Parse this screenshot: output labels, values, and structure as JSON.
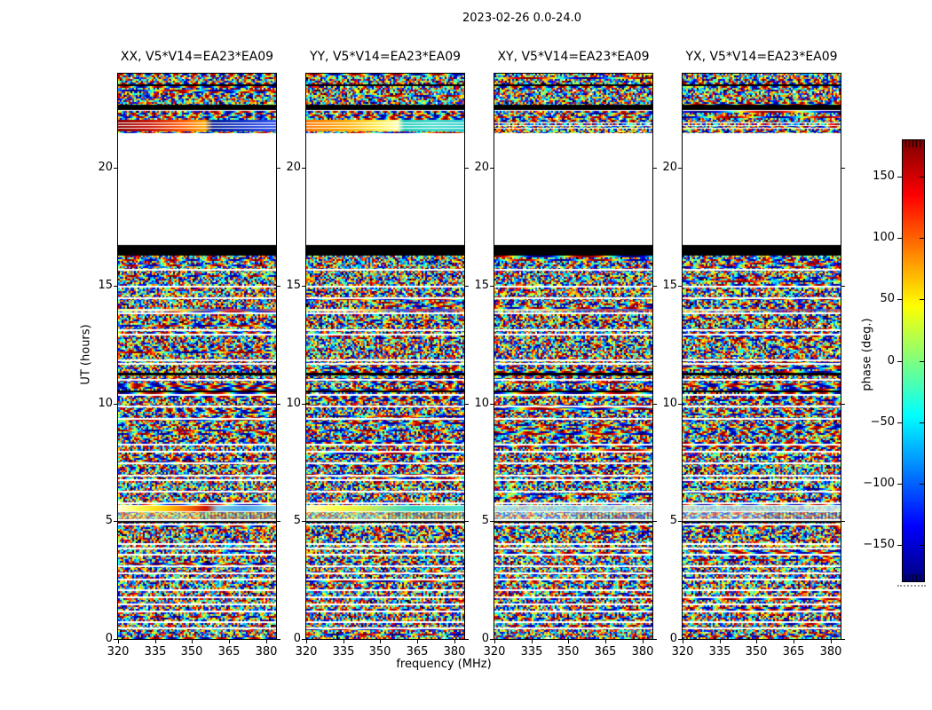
{
  "figure": {
    "title": "2023-02-26 0.0-24.0"
  },
  "axes": {
    "xlabel": "frequency (MHz)",
    "ylabel": "UT (hours)",
    "xtick_labels": [
      "320",
      "335",
      "350",
      "365",
      "380"
    ],
    "ytick_labels": [
      "0",
      "5",
      "10",
      "15",
      "20"
    ]
  },
  "panels": [
    {
      "label": "XX, V5*V14=EA23*EA09"
    },
    {
      "label": "YY, V5*V14=EA23*EA09"
    },
    {
      "label": "XY, V5*V14=EA23*EA09"
    },
    {
      "label": "YX, V5*V14=EA23*EA09"
    }
  ],
  "colorbar": {
    "label": "phase (deg.)",
    "tick_labels": [
      "150",
      "100",
      "50",
      "0",
      "−50",
      "−100",
      "−150"
    ]
  },
  "chart_data": {
    "type": "heatmap",
    "title": "2023-02-26 0.0-24.0",
    "xlabel": "frequency (MHz)",
    "ylabel": "UT (hours)",
    "xlim": [
      320,
      384
    ],
    "ylim": [
      0,
      24
    ],
    "xticks": [
      320,
      335,
      350,
      365,
      380
    ],
    "yticks": [
      0,
      5,
      10,
      15,
      20
    ],
    "value_quantity": "interferometer visibility phase, mostly random noise on baseline V5*V14=EA23*EA09",
    "colormap": "jet",
    "colorbar_range": [
      -180,
      180
    ],
    "colorbar_ticks": [
      150,
      100,
      50,
      0,
      -50,
      -100,
      -150
    ],
    "panels": [
      "XX, V5*V14=EA23*EA09",
      "YY, V5*V14=EA23*EA09",
      "XY, V5*V14=EA23*EA09",
      "YX, V5*V14=EA23*EA09"
    ],
    "no_data_hours": [
      [
        16.73,
        21.45
      ]
    ],
    "black_flag_hours": [
      [
        16.28,
        16.73
      ],
      [
        22.47,
        22.7
      ],
      [
        23.48,
        23.56
      ],
      [
        11.18,
        11.3
      ],
      [
        10.43,
        10.52
      ],
      [
        4.93,
        5.02
      ]
    ],
    "white_flag_hour_centers": [
      0.5,
      0.75,
      1.2,
      1.5,
      1.8,
      2.1,
      2.6,
      2.8,
      3.1,
      3.6,
      3.9,
      4.1,
      4.9,
      5.1,
      5.8,
      6.3,
      6.8,
      7.0,
      7.5,
      8.0,
      8.3,
      9.4,
      9.9,
      10.4,
      11.0,
      11.7,
      11.9,
      13.0,
      13.2,
      13.9,
      14.5,
      15.0,
      15.7,
      21.8,
      22.0,
      22.4
    ],
    "coherent_events": [
      {
        "hours": [
          21.55,
          21.95
        ],
        "XX": "dark-red/red left two-thirds, blue right",
        "YY": "orange-yellow left, cyan right",
        "XY": "random noise",
        "YX": "random noise"
      },
      {
        "hours": [
          13.9,
          14.05
        ],
        "all": "bright yellow-white left, fine blue/red fringes right"
      },
      {
        "hours": [
          5.45,
          5.7
        ],
        "XX": "white-yellow to orange-red left, blue-cyan right",
        "YY": "yellow left, cyan-green right",
        "XY": "faint cyan",
        "YX": "faint cyan"
      }
    ]
  },
  "render": {
    "noise_seed": 20230226,
    "white_block_rel": [
      67,
      126
    ],
    "black_rel": [
      [
        12,
        2
      ],
      [
        35,
        6
      ],
      [
        193,
        12
      ],
      [
        337,
        3
      ],
      [
        357,
        2
      ],
      [
        504,
        2
      ]
    ],
    "white_rel": [
      [
        40,
        2
      ],
      [
        220,
        2
      ],
      [
        239,
        2
      ],
      [
        252,
        2
      ],
      [
        269,
        2
      ],
      [
        288,
        2
      ],
      [
        293,
        2
      ],
      [
        322,
        2
      ],
      [
        326,
        2
      ],
      [
        344,
        2
      ],
      [
        361,
        2
      ],
      [
        374,
        2
      ],
      [
        388,
        2
      ],
      [
        417,
        2
      ],
      [
        425,
        2
      ],
      [
        438,
        2
      ],
      [
        452,
        2
      ],
      [
        457,
        2
      ],
      [
        470,
        2
      ],
      [
        483,
        2
      ],
      [
        486,
        1
      ],
      [
        493,
        1
      ],
      [
        502,
        2
      ],
      [
        507,
        2
      ],
      [
        529,
        2
      ],
      [
        534,
        2
      ],
      [
        541,
        2
      ],
      [
        554,
        2
      ],
      [
        562,
        2
      ],
      [
        569,
        2
      ],
      [
        581,
        2
      ],
      [
        589,
        2
      ],
      [
        597,
        2
      ],
      [
        605,
        2
      ],
      [
        617,
        2
      ],
      [
        624,
        2
      ]
    ],
    "streak21_rows_rel": [
      [
        52,
        3
      ],
      [
        56,
        2
      ],
      [
        59,
        2
      ],
      [
        62,
        3
      ]
    ],
    "streak21_white_rel": [
      [
        55,
        1
      ],
      [
        58,
        1
      ],
      [
        61,
        1
      ]
    ],
    "streak5_rel": [
      487,
      6
    ],
    "streak14_rel": [
      265,
      3
    ],
    "pale_band_rel": [
      494,
      8
    ],
    "grad21": [
      [
        [
          0,
          "#8b0000"
        ],
        [
          0.2,
          "#cc1100"
        ],
        [
          0.4,
          "#ff5500"
        ],
        [
          0.55,
          "#ffaa00"
        ],
        [
          0.6,
          "#001a99"
        ],
        [
          0.8,
          "#1133cc"
        ],
        [
          1,
          "#3355ee"
        ]
      ],
      [
        [
          0,
          "#ff7700"
        ],
        [
          0.25,
          "#ffaa00"
        ],
        [
          0.45,
          "#ffee44"
        ],
        [
          0.58,
          "#ffffaa"
        ],
        [
          0.62,
          "#22ccbb"
        ],
        [
          0.8,
          "#44ddcc"
        ],
        [
          1,
          "#33cfd0"
        ]
      ],
      null,
      null
    ],
    "grad5": [
      [
        [
          0,
          "#ffffe0"
        ],
        [
          0.12,
          "#ffff55"
        ],
        [
          0.3,
          "#ffcc00"
        ],
        [
          0.45,
          "#ff6600"
        ],
        [
          0.56,
          "#cc1100"
        ],
        [
          0.63,
          "#7ec8e3"
        ],
        [
          0.8,
          "#49a8ee"
        ],
        [
          1,
          "#8fd4e8"
        ]
      ],
      [
        [
          0,
          "#ffffcc"
        ],
        [
          0.18,
          "#ffff44"
        ],
        [
          0.38,
          "#d8ee44"
        ],
        [
          0.52,
          "#7fe89a"
        ],
        [
          0.68,
          "#2fd8c8"
        ],
        [
          1,
          "#55e0d5"
        ]
      ],
      [
        [
          0,
          "#c8f0ec"
        ],
        [
          0.5,
          "#a8e6ee"
        ],
        [
          1,
          "#d5f2f8"
        ]
      ],
      [
        [
          0,
          "#cdeff0"
        ],
        [
          0.5,
          "#b2e4ea"
        ],
        [
          1,
          "#d8f4f4"
        ]
      ]
    ],
    "grad14": [
      [
        0,
        "#ffff99"
      ],
      [
        0.25,
        "#fffff0"
      ],
      [
        0.45,
        "#ffbb33"
      ],
      [
        0.6,
        "#3355ff"
      ],
      [
        0.72,
        "#ee3322"
      ],
      [
        0.85,
        "#2244ee"
      ],
      [
        1,
        "#ff6633"
      ]
    ],
    "pale_tint": [
      "rgba(255,228,150,0.45)",
      "rgba(235,250,170,0.45)",
      "rgba(255,255,255,0.40)",
      "rgba(255,255,255,0.40)"
    ]
  }
}
